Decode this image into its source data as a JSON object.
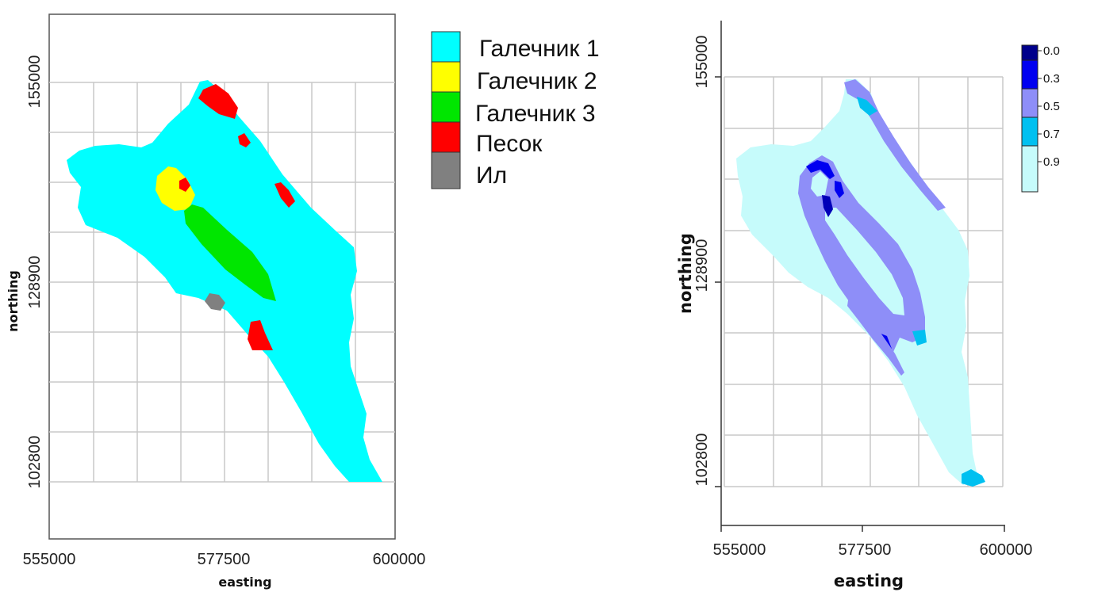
{
  "colors": {
    "gravel1": "#00ffff",
    "gravel2": "#ffff00",
    "gravel3": "#00e600",
    "sand": "#ff0000",
    "silt": "#808080",
    "grid": "#c8c8c8",
    "prob_base": "#c6fbfb",
    "prob_mid": "#8e8ef8",
    "prob_light": "#00c0f0",
    "prob_dark": "#0000b8",
    "prob_dark2": "#0000f0"
  },
  "map_left": {
    "xticks": [
      "555000",
      "577500",
      "600000"
    ],
    "yticks": [
      "155000",
      "128900",
      "102800"
    ],
    "xlabel": "easting",
    "ylabel": "northing",
    "legend": [
      {
        "label": "Галечник 1",
        "color": "#00ffff"
      },
      {
        "label": "Галечник 2",
        "color": "#ffff00"
      },
      {
        "label": "Галечник 3",
        "color": "#00e600"
      },
      {
        "label": "Песок",
        "color": "#ff0000"
      },
      {
        "label": "Ил",
        "color": "#808080"
      }
    ]
  },
  "map_right": {
    "xticks": [
      "555000",
      "577500",
      "600000"
    ],
    "yticks": [
      "155000",
      "128900",
      "102800"
    ],
    "xlabel": "easting",
    "ylabel": "northing",
    "legend": [
      {
        "label": "0.0",
        "color": "#00008b"
      },
      {
        "label": "0.3",
        "color": "#0000f0"
      },
      {
        "label": "0.5",
        "color": "#8e8ef8"
      },
      {
        "label": "0.7",
        "color": "#00c0f0"
      },
      {
        "label": "0.9",
        "color": "#c6fbfb"
      }
    ]
  }
}
